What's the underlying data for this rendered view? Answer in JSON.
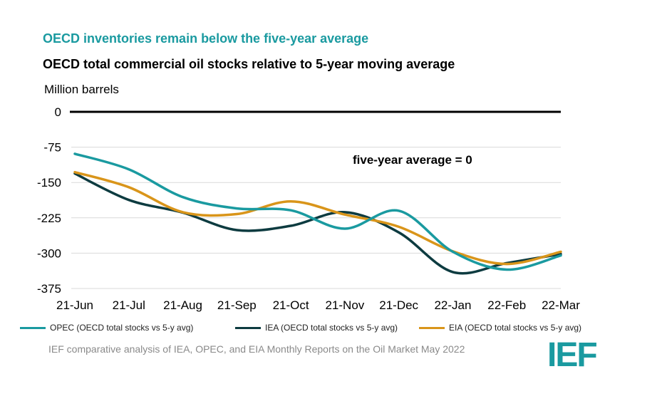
{
  "header": {
    "headline": "OECD inventories remain below the five-year average",
    "subtitle": "OECD total commercial oil stocks relative to 5-year moving average",
    "unit": "Million barrels"
  },
  "source": "IEF comparative analysis of IEA, OPEC, and EIA Monthly Reports on the Oil Market May 2022",
  "logo_text": "IEF",
  "colors": {
    "opec": "#1a9aa0",
    "iea": "#0d3b40",
    "eia": "#d9951a",
    "zero_line": "#000000",
    "grid": "#d9d9d9",
    "headline": "#1a9aa0",
    "logo": "#1a9aa0"
  },
  "chart_data": {
    "type": "line",
    "title": "OECD total commercial oil stocks relative to 5-year moving average",
    "ylabel": "Million barrels",
    "ylim": [
      -375,
      0
    ],
    "yticks": [
      0,
      -75,
      -150,
      -225,
      -300,
      -375
    ],
    "ytick_labels": [
      "0",
      "-75",
      "-150",
      "-225",
      "-300",
      "-375"
    ],
    "grid": true,
    "legend_position": "bottom",
    "categories": [
      "21-Jun",
      "21-Jul",
      "21-Aug",
      "21-Sep",
      "21-Oct",
      "21-Nov",
      "21-Dec",
      "22-Jan",
      "22-Feb",
      "22-Mar"
    ],
    "annotation": "five-year average = 0",
    "series": [
      {
        "key": "opec",
        "name": "OPEC (OECD total stocks vs 5-y avg)",
        "values": [
          -89,
          -122,
          -181,
          -205,
          -209,
          -248,
          -210,
          -297,
          -335,
          -305
        ]
      },
      {
        "key": "iea",
        "name": "IEA (OECD total stocks vs 5-y avg)",
        "values": [
          -131,
          -187,
          -214,
          -251,
          -242,
          -213,
          -256,
          -340,
          -321,
          -302
        ]
      },
      {
        "key": "eia",
        "name": "EIA (OECD total stocks vs 5-y avg)",
        "values": [
          -128,
          -160,
          -213,
          -217,
          -190,
          -218,
          -244,
          -296,
          -323,
          -297
        ]
      }
    ]
  }
}
